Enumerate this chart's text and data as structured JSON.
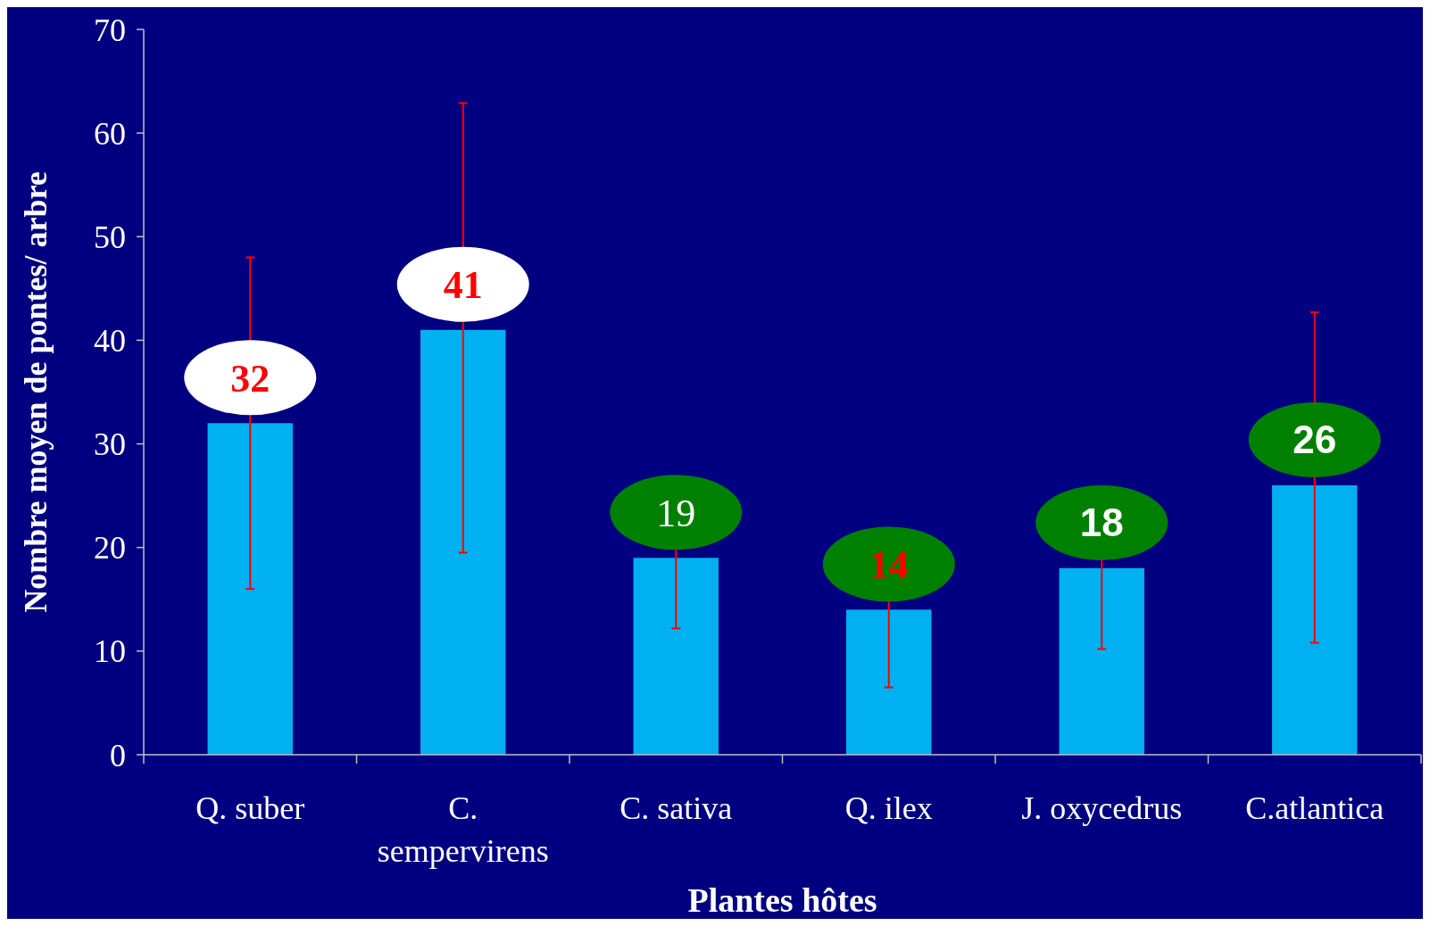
{
  "chart_data": {
    "type": "bar",
    "xlabel": "Plantes hôtes",
    "ylabel": "Nombre moyen de pontes/ arbre",
    "categories": [
      "Q. suber",
      "C. sempervirens",
      "C. sativa",
      "Q. ilex",
      "J. oxycedrus",
      "C.atlantica"
    ],
    "values": [
      32,
      41,
      19,
      14,
      18,
      26
    ],
    "errors": [
      16,
      [
        19.5,
        62.9
      ],
      6.8,
      7.5,
      7.8,
      [
        10.8,
        42.7
      ]
    ],
    "value_labels": [
      "32",
      "41",
      "19",
      "14",
      "18",
      "26"
    ],
    "color": "#00b0f0",
    "ylim": [
      0,
      70
    ],
    "yticks": [
      0,
      10,
      20,
      30,
      40,
      50,
      60,
      70
    ],
    "grid": false
  }
}
